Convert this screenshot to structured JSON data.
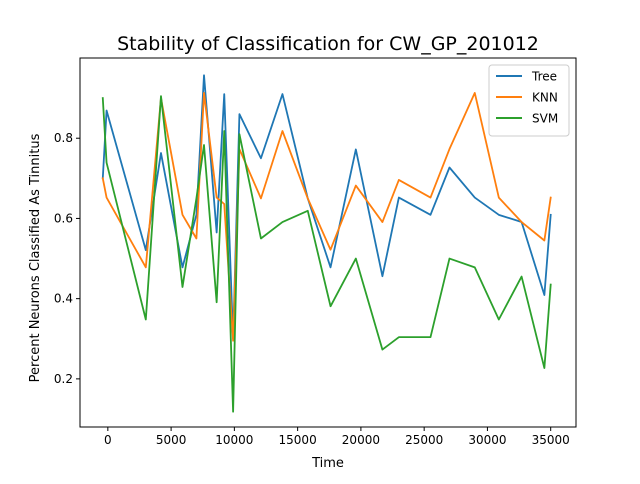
{
  "chart_data": {
    "type": "line",
    "title": "Stability of Classification for CW_GP_201012",
    "xlabel": "Time",
    "ylabel": "Percent Neurons Classified As Tinnitus",
    "xlim": [
      -2200,
      37000
    ],
    "ylim": [
      0.08,
      1.0
    ],
    "xticks": [
      0,
      5000,
      10000,
      15000,
      20000,
      25000,
      30000,
      35000
    ],
    "xtick_labels": [
      "0",
      "5000",
      "10000",
      "15000",
      "20000",
      "25000",
      "30000",
      "35000"
    ],
    "yticks": [
      0.2,
      0.4,
      0.6,
      0.8
    ],
    "ytick_labels": [
      "0.2",
      "0.4",
      "0.6",
      "0.8"
    ],
    "grid": false,
    "legend_position": "top-right",
    "series": [
      {
        "name": "Tree",
        "color": "#1f77b4",
        "points": [
          [
            -400,
            0.7
          ],
          [
            -100,
            0.869
          ],
          [
            3000,
            0.521
          ],
          [
            4200,
            0.763
          ],
          [
            5900,
            0.478
          ],
          [
            7000,
            0.609
          ],
          [
            7600,
            0.957
          ],
          [
            8600,
            0.565
          ],
          [
            9200,
            0.91
          ],
          [
            9900,
            0.3
          ],
          [
            10400,
            0.86
          ],
          [
            12100,
            0.75
          ],
          [
            13800,
            0.91
          ],
          [
            15800,
            0.65
          ],
          [
            17600,
            0.478
          ],
          [
            19600,
            0.772
          ],
          [
            21700,
            0.456
          ],
          [
            23000,
            0.652
          ],
          [
            25500,
            0.609
          ],
          [
            27000,
            0.727
          ],
          [
            29000,
            0.652
          ],
          [
            30900,
            0.609
          ],
          [
            32700,
            0.591
          ],
          [
            34500,
            0.409
          ],
          [
            35000,
            0.609
          ]
        ]
      },
      {
        "name": "KNN",
        "color": "#ff7f0e",
        "points": [
          [
            -400,
            0.7
          ],
          [
            -100,
            0.652
          ],
          [
            3000,
            0.478
          ],
          [
            4200,
            0.9
          ],
          [
            5900,
            0.609
          ],
          [
            7000,
            0.55
          ],
          [
            7600,
            0.913
          ],
          [
            8600,
            0.652
          ],
          [
            9200,
            0.636
          ],
          [
            9900,
            0.295
          ],
          [
            10400,
            0.773
          ],
          [
            12100,
            0.65
          ],
          [
            13800,
            0.818
          ],
          [
            15800,
            0.65
          ],
          [
            17600,
            0.522
          ],
          [
            19600,
            0.682
          ],
          [
            21700,
            0.591
          ],
          [
            23000,
            0.696
          ],
          [
            25500,
            0.652
          ],
          [
            27000,
            0.773
          ],
          [
            29000,
            0.913
          ],
          [
            30900,
            0.652
          ],
          [
            32700,
            0.591
          ],
          [
            34500,
            0.545
          ],
          [
            35000,
            0.652
          ]
        ]
      },
      {
        "name": "SVM",
        "color": "#2ca02c",
        "points": [
          [
            -400,
            0.9
          ],
          [
            -100,
            0.739
          ],
          [
            3000,
            0.348
          ],
          [
            4200,
            0.905
          ],
          [
            5900,
            0.429
          ],
          [
            7000,
            0.65
          ],
          [
            7600,
            0.783
          ],
          [
            8600,
            0.391
          ],
          [
            9200,
            0.818
          ],
          [
            9900,
            0.118
          ],
          [
            10400,
            0.81
          ],
          [
            12100,
            0.55
          ],
          [
            13800,
            0.591
          ],
          [
            15800,
            0.619
          ],
          [
            17600,
            0.381
          ],
          [
            19600,
            0.5
          ],
          [
            21700,
            0.273
          ],
          [
            23000,
            0.304
          ],
          [
            25500,
            0.304
          ],
          [
            27000,
            0.5
          ],
          [
            29000,
            0.478
          ],
          [
            30900,
            0.348
          ],
          [
            32700,
            0.455
          ],
          [
            34500,
            0.227
          ],
          [
            35000,
            0.435
          ]
        ]
      }
    ]
  }
}
